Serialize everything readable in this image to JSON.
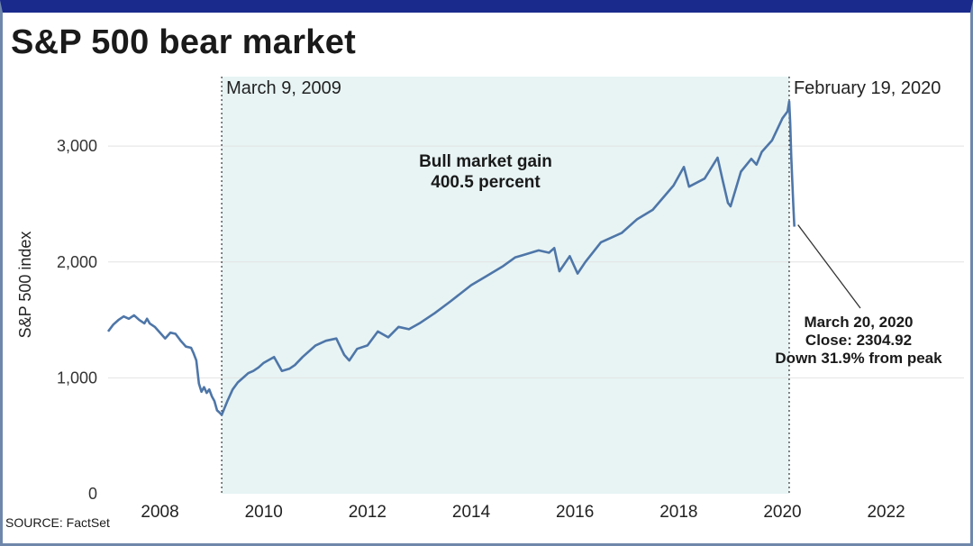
{
  "chart_data": {
    "type": "line",
    "title": "S&P 500 bear market",
    "source": "SOURCE: FactSet",
    "ylabel": "S&P 500 index",
    "xlabel": "",
    "xlim": [
      2007.0,
      2023.5
    ],
    "ylim": [
      0,
      3600
    ],
    "y_ticks": [
      {
        "value": 0,
        "label": "0"
      },
      {
        "value": 1000,
        "label": "1,000"
      },
      {
        "value": 2000,
        "label": "2,000"
      },
      {
        "value": 3000,
        "label": "3,000"
      }
    ],
    "x_ticks": [
      {
        "value": 2008,
        "label": "2008"
      },
      {
        "value": 2010,
        "label": "2010"
      },
      {
        "value": 2012,
        "label": "2012"
      },
      {
        "value": 2014,
        "label": "2014"
      },
      {
        "value": 2016,
        "label": "2016"
      },
      {
        "value": 2018,
        "label": "2018"
      },
      {
        "value": 2020,
        "label": "2020"
      },
      {
        "value": 2022,
        "label": "2022"
      }
    ],
    "grid": "horizontal",
    "line_color": "#4e76a8",
    "shade_color": "#e8f4f4",
    "bull_market_period": {
      "start": 2009.19,
      "end": 2020.13,
      "start_label": "March 9, 2009",
      "end_label": "February 19, 2020"
    },
    "annotations": {
      "bull_gain": [
        "Bull market gain",
        "400.5 percent"
      ],
      "low_point": [
        "March 20, 2020",
        "Close: 2304.92",
        "Down 31.9% from peak"
      ]
    },
    "series": [
      {
        "x": [
          2007.0,
          2007.1,
          2007.2,
          2007.3,
          2007.4,
          2007.5,
          2007.6,
          2007.7,
          2007.75,
          2007.8,
          2007.9,
          2008.0,
          2008.1,
          2008.2,
          2008.3,
          2008.4,
          2008.5,
          2008.6,
          2008.65,
          2008.7,
          2008.75,
          2008.8,
          2008.85,
          2008.9,
          2008.95,
          2009.0,
          2009.05,
          2009.1,
          2009.15,
          2009.19,
          2009.3,
          2009.4,
          2009.5,
          2009.6,
          2009.7,
          2009.8,
          2009.9,
          2010.0,
          2010.2,
          2010.35,
          2010.5,
          2010.6,
          2010.75,
          2011.0,
          2011.2,
          2011.4,
          2011.55,
          2011.65,
          2011.8,
          2012.0,
          2012.2,
          2012.4,
          2012.6,
          2012.8,
          2013.0,
          2013.3,
          2013.6,
          2014.0,
          2014.3,
          2014.6,
          2014.85,
          2015.0,
          2015.3,
          2015.5,
          2015.6,
          2015.7,
          2015.9,
          2016.05,
          2016.2,
          2016.5,
          2016.9,
          2017.2,
          2017.5,
          2017.9,
          2018.1,
          2018.2,
          2018.5,
          2018.75,
          2018.85,
          2018.95,
          2019.0,
          2019.2,
          2019.4,
          2019.5,
          2019.6,
          2019.8,
          2020.0,
          2020.1,
          2020.13,
          2020.15,
          2020.17,
          2020.19,
          2020.21,
          2020.23
        ],
        "values": [
          1400,
          1460,
          1500,
          1530,
          1510,
          1540,
          1500,
          1470,
          1510,
          1470,
          1440,
          1390,
          1340,
          1390,
          1380,
          1320,
          1270,
          1260,
          1210,
          1150,
          950,
          880,
          920,
          870,
          900,
          840,
          800,
          720,
          700,
          680,
          800,
          900,
          960,
          1000,
          1040,
          1060,
          1090,
          1130,
          1180,
          1060,
          1080,
          1110,
          1180,
          1280,
          1320,
          1340,
          1200,
          1150,
          1250,
          1280,
          1400,
          1350,
          1440,
          1420,
          1470,
          1560,
          1660,
          1800,
          1880,
          1960,
          2040,
          2060,
          2100,
          2080,
          2120,
          1920,
          2050,
          1900,
          2000,
          2170,
          2250,
          2370,
          2450,
          2660,
          2820,
          2650,
          2720,
          2900,
          2700,
          2510,
          2480,
          2780,
          2890,
          2840,
          2950,
          3050,
          3240,
          3300,
          3386,
          3200,
          2900,
          2700,
          2480,
          2304.92
        ]
      }
    ]
  }
}
